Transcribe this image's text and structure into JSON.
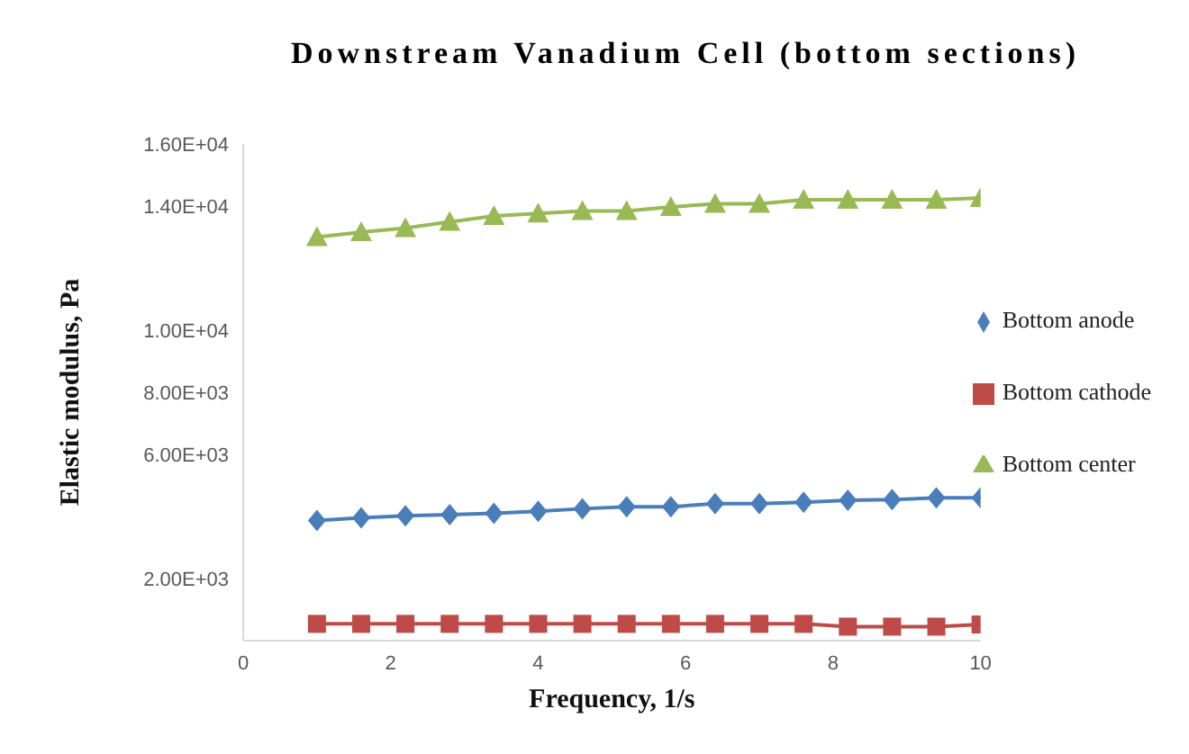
{
  "chart_data": {
    "type": "line",
    "title": "Downstream Vanadium Cell (bottom sections)",
    "xlabel": "Frequency, 1/s",
    "ylabel": "Elastic modulus, Pa",
    "x": [
      1,
      1.6,
      2.2,
      2.8,
      3.4,
      4,
      4.6,
      5.2,
      5.8,
      6.4,
      7,
      7.6,
      8.2,
      8.8,
      9.4,
      10
    ],
    "series": [
      {
        "name": "Bottom anode",
        "color": "#4a7ebb",
        "marker": "diamond",
        "values": [
          3870,
          3960,
          4020,
          4060,
          4100,
          4170,
          4250,
          4310,
          4310,
          4410,
          4410,
          4460,
          4520,
          4540,
          4600,
          4600
        ]
      },
      {
        "name": "Bottom cathode",
        "color": "#be4b48",
        "marker": "square",
        "values": [
          540,
          540,
          540,
          540,
          540,
          540,
          540,
          540,
          540,
          540,
          540,
          540,
          450,
          450,
          450,
          520
        ]
      },
      {
        "name": "Bottom center",
        "color": "#98b954",
        "marker": "triangle",
        "values": [
          13000,
          13160,
          13290,
          13490,
          13680,
          13760,
          13840,
          13840,
          13970,
          14070,
          14070,
          14200,
          14200,
          14200,
          14200,
          14260
        ]
      }
    ],
    "xlim": [
      0,
      10
    ],
    "xticks": [
      0,
      2,
      4,
      6,
      8,
      10
    ],
    "ylim": [
      0,
      16000
    ],
    "yticks": [
      {
        "value": 2000,
        "label": "2.00E+03"
      },
      {
        "value": 6000,
        "label": "6.00E+03"
      },
      {
        "value": 8000,
        "label": "8.00E+03"
      },
      {
        "value": 10000,
        "label": "1.00E+04"
      },
      {
        "value": 14000,
        "label": "1.40E+04"
      },
      {
        "value": 16000,
        "label": "1.60E+04"
      }
    ],
    "grid": false,
    "legend": "right",
    "line_style": "solid"
  }
}
